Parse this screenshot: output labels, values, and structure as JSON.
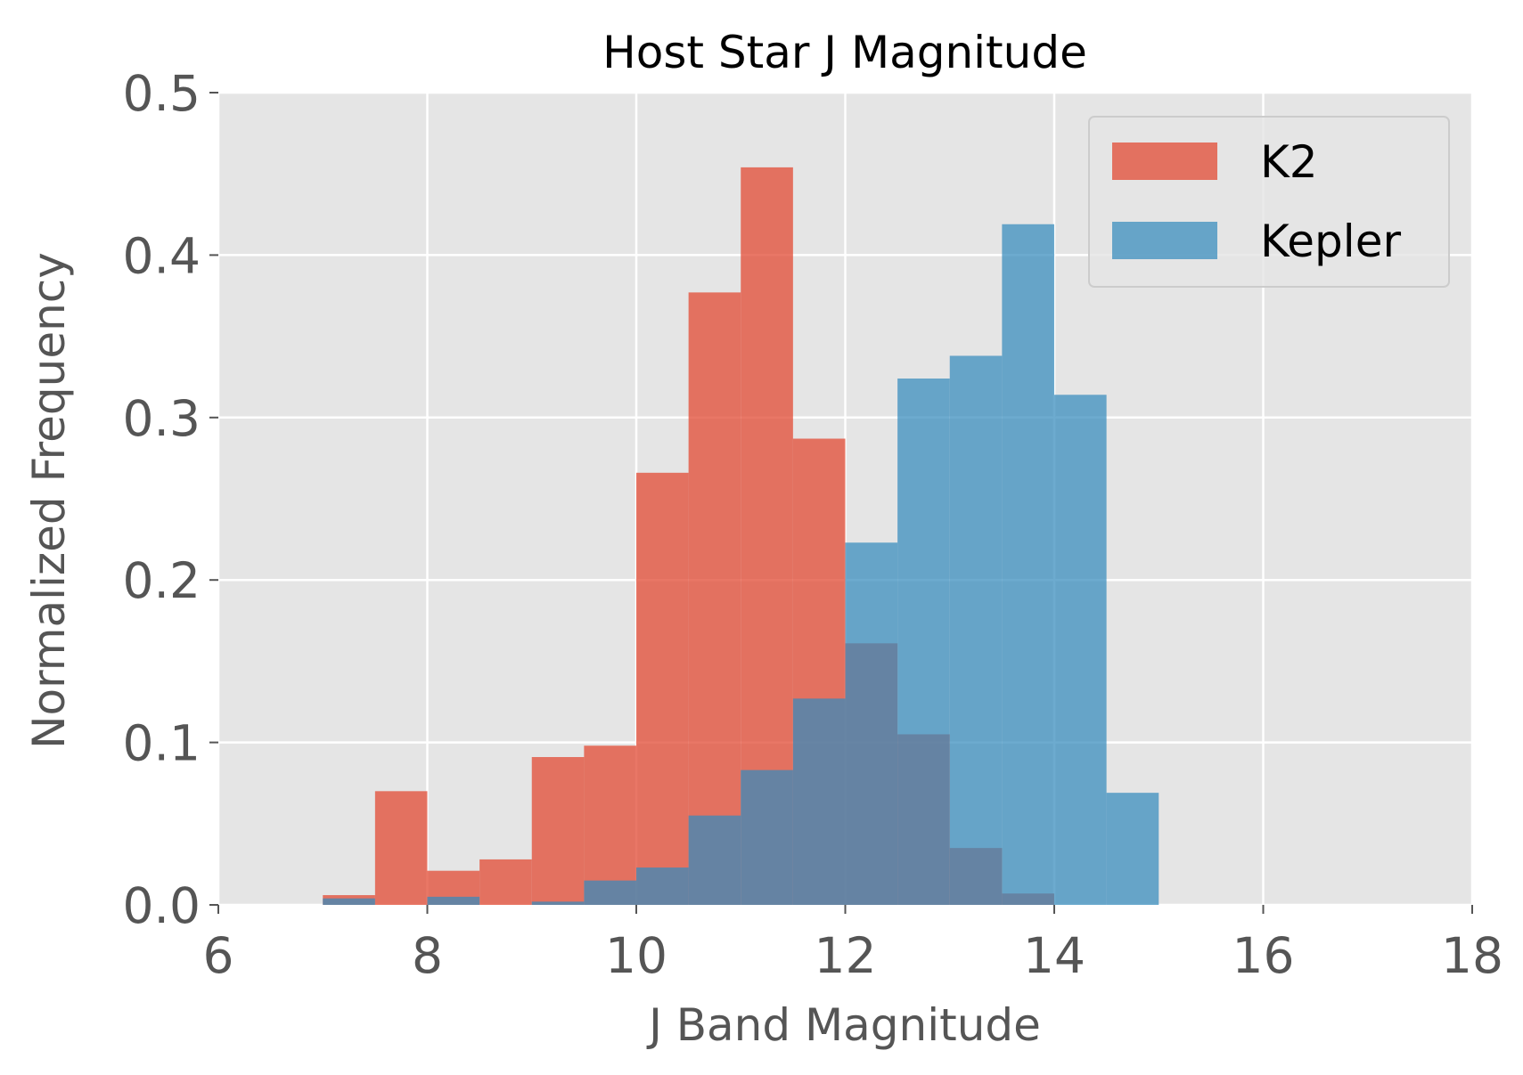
{
  "chart_data": {
    "type": "bar",
    "title": "Host Star J Magnitude",
    "xlabel": "J Band Magnitude",
    "ylabel": "Normalized Frequency",
    "xlim": [
      6,
      18
    ],
    "ylim": [
      0,
      0.5
    ],
    "xticks": [
      6,
      8,
      10,
      12,
      14,
      16,
      18
    ],
    "xtick_labels": [
      "6",
      "8",
      "10",
      "12",
      "14",
      "16",
      "18"
    ],
    "yticks": [
      0,
      0.1,
      0.2,
      0.3,
      0.4,
      0.5
    ],
    "ytick_labels": [
      "0.0",
      "0.1",
      "0.2",
      "0.3",
      "0.4",
      "0.5"
    ],
    "grid": true,
    "legend_position": "top-right",
    "bin_edges": [
      7.0,
      7.5,
      8.0,
      8.5,
      9.0,
      9.5,
      10.0,
      10.5,
      11.0,
      11.5,
      12.0,
      12.5,
      13.0,
      13.5,
      14.0,
      14.5,
      15.0
    ],
    "series": [
      {
        "name": "K2",
        "color": "#E24A33",
        "opacity": 0.75,
        "values": [
          0.006,
          0.07,
          0.021,
          0.028,
          0.091,
          0.098,
          0.266,
          0.377,
          0.454,
          0.287,
          0.161,
          0.105,
          0.035,
          0.007,
          0.0,
          0.0
        ]
      },
      {
        "name": "Kepler",
        "color": "#348ABD",
        "opacity": 0.72,
        "values": [
          0.004,
          0.0,
          0.005,
          0.0,
          0.002,
          0.015,
          0.023,
          0.055,
          0.083,
          0.127,
          0.223,
          0.324,
          0.338,
          0.419,
          0.314,
          0.069
        ]
      }
    ]
  },
  "style": {
    "plot_background": "#E5E5E5",
    "grid_color": "#FFFFFF",
    "tick_color": "#555555",
    "legend_background": "#E5E5E5",
    "legend_border": "#CCCCCC"
  }
}
